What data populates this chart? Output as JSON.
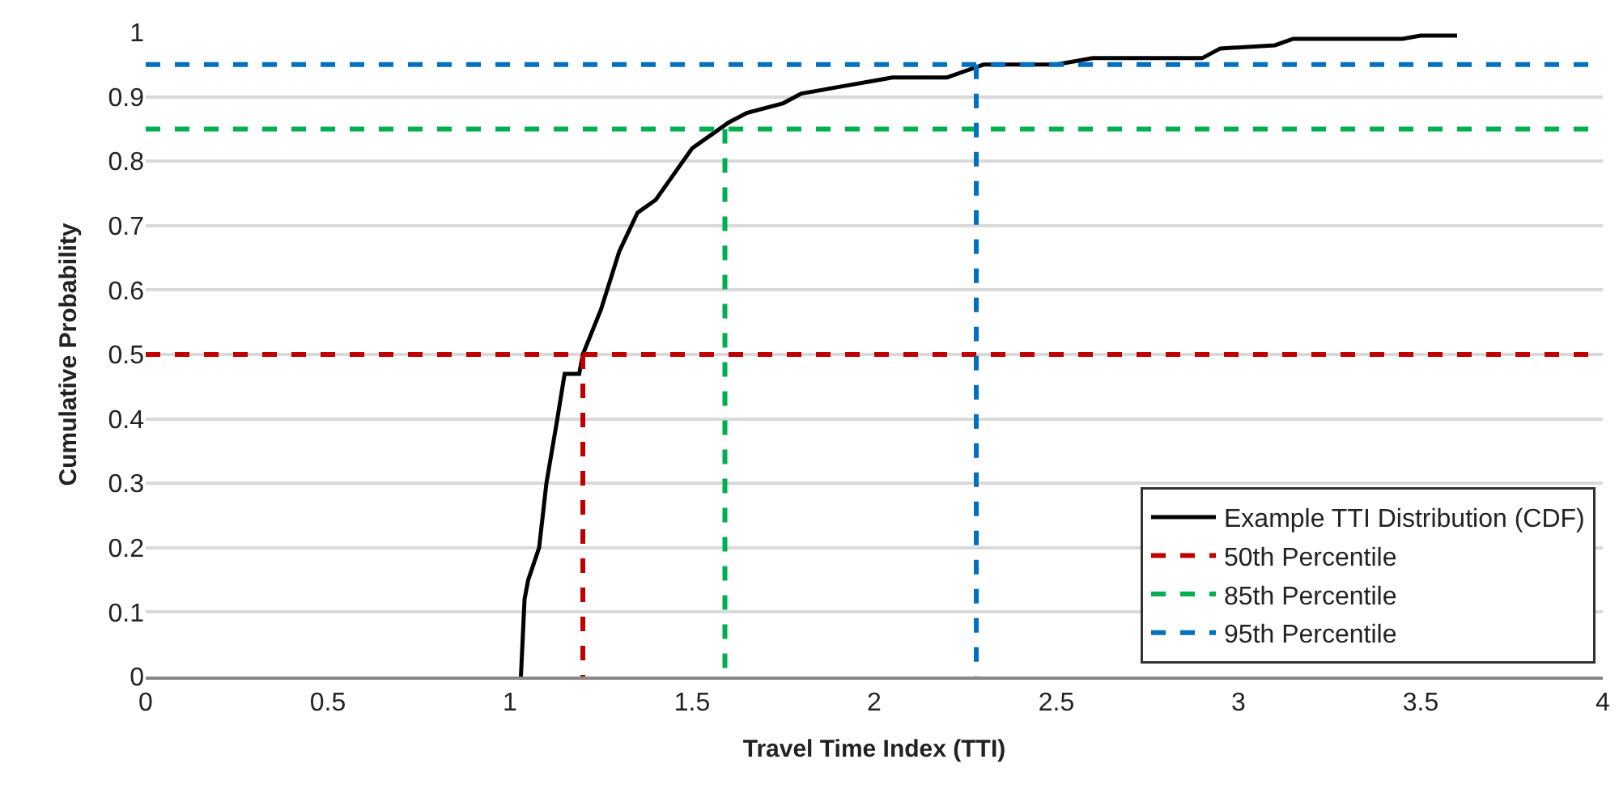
{
  "chart_data": {
    "type": "line",
    "xlabel": "Travel Time Index (TTI)",
    "ylabel": "Cumulative Probability",
    "xlim": [
      0,
      4
    ],
    "xticks": [
      0,
      0.5,
      1,
      1.5,
      2,
      2.5,
      3,
      3.5,
      4
    ],
    "ylim": [
      0,
      1
    ],
    "yticks": [
      0,
      0.1,
      0.2,
      0.3,
      0.4,
      0.5,
      0.6,
      0.7,
      0.8,
      0.9,
      1
    ],
    "grid": "y",
    "legend": "bottom right",
    "marker": "none",
    "series": [
      {
        "name": "Example TTI Distribution (CDF)",
        "color": "#000000",
        "line_style": "solid",
        "x": [
          1.03,
          1.04,
          1.05,
          1.08,
          1.1,
          1.13,
          1.15,
          1.16,
          1.19,
          1.2,
          1.25,
          1.3,
          1.35,
          1.4,
          1.45,
          1.5,
          1.55,
          1.6,
          1.65,
          1.75,
          1.8,
          1.9,
          2.0,
          2.05,
          2.2,
          2.25,
          2.3,
          2.5,
          2.6,
          2.9,
          2.95,
          3.1,
          3.15,
          3.45,
          3.5,
          3.6
        ],
        "values": [
          0,
          0.12,
          0.15,
          0.2,
          0.3,
          0.4,
          0.47,
          0.47,
          0.47,
          0.5,
          0.57,
          0.66,
          0.72,
          0.74,
          0.78,
          0.82,
          0.84,
          0.86,
          0.875,
          0.89,
          0.905,
          0.915,
          0.925,
          0.93,
          0.93,
          0.94,
          0.95,
          0.95,
          0.96,
          0.96,
          0.975,
          0.98,
          0.99,
          0.99,
          0.995,
          0.995
        ]
      },
      {
        "name": "50th Percentile",
        "color": "#c00000",
        "line_style": "dashed",
        "x": [
          0,
          4,
          null,
          1.2,
          1.2
        ],
        "values": [
          0.5,
          0.5,
          null,
          0.5,
          0
        ]
      },
      {
        "name": "85th Percentile",
        "color": "#00b050",
        "line_style": "dashed",
        "x": [
          0,
          4,
          null,
          1.59,
          1.59
        ],
        "values": [
          0.85,
          0.85,
          null,
          0.85,
          0
        ]
      },
      {
        "name": "95th Percentile",
        "color": "#0070c0",
        "line_style": "dashed",
        "x": [
          0,
          4,
          null,
          2.28,
          2.28
        ],
        "values": [
          0.95,
          0.95,
          null,
          0.95,
          0
        ]
      }
    ]
  }
}
